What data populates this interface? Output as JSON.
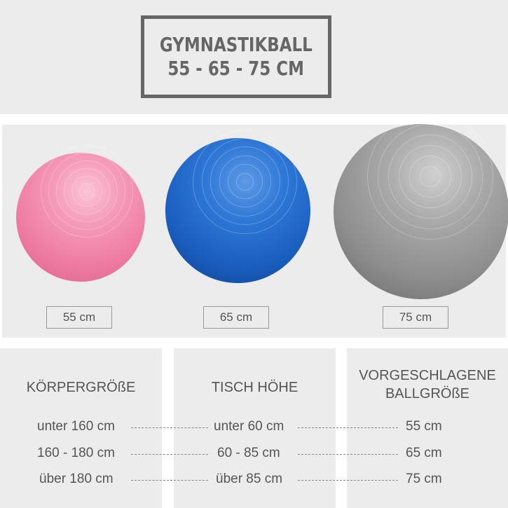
{
  "title": {
    "line1": "GYMNASTIKBALL",
    "line2": "55 - 65 - 75 CM"
  },
  "balls": [
    {
      "size": "55 cm",
      "color": "#f283a8"
    },
    {
      "size": "65 cm",
      "color": "#1b64c4"
    },
    {
      "size": "75 cm",
      "color": "#8f8f8f"
    }
  ],
  "table": {
    "headers": [
      "KÖRPERGRÖßE",
      "TISCH HÖHE",
      "VORGESCHLAGENE BALLGRÖßE"
    ],
    "header3_lines": [
      "VORGESCHLAGENE",
      "BALLGRÖßE"
    ],
    "rows": [
      [
        "unter 160 cm",
        "unter 60 cm",
        "55 cm"
      ],
      [
        "160 - 180 cm",
        "60 - 85 cm",
        "65 cm"
      ],
      [
        "über 180 cm",
        "über 85 cm",
        "75 cm"
      ]
    ]
  }
}
